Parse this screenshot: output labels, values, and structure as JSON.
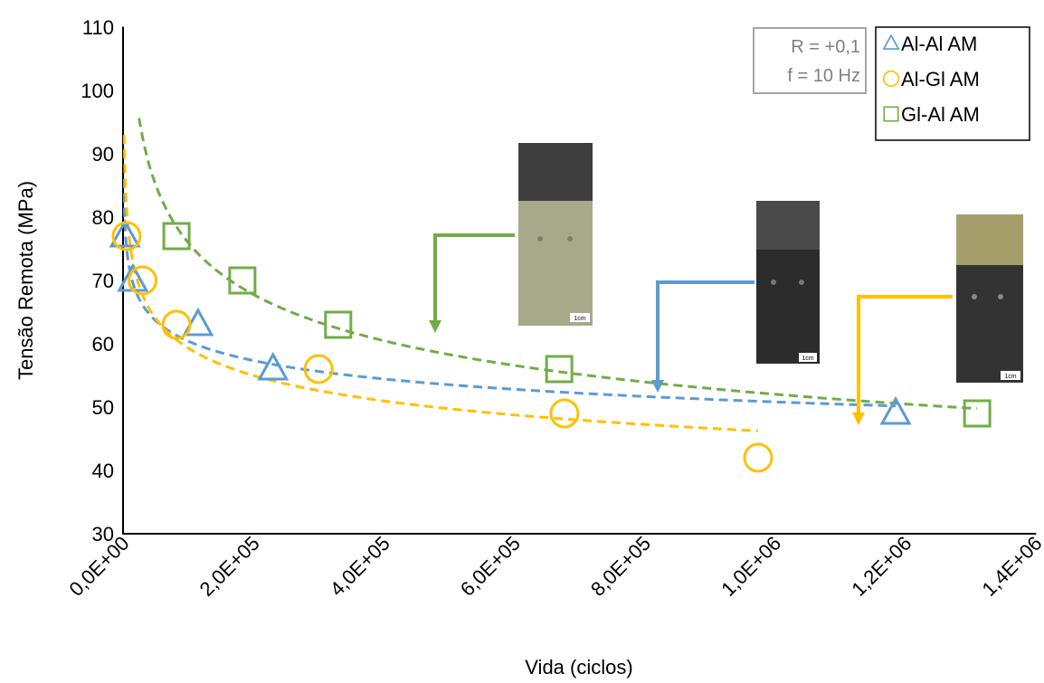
{
  "chart_data": {
    "type": "scatter",
    "x_label": "Vida (ciclos)",
    "y_label": "Tensão Remota (MPa)",
    "xlim": [
      0,
      1400000
    ],
    "ylim": [
      30,
      110
    ],
    "xticks": [
      {
        "value": 0,
        "label": "0,0E+00"
      },
      {
        "value": 200000,
        "label": "2,0E+05"
      },
      {
        "value": 400000,
        "label": "4,0E+05"
      },
      {
        "value": 600000,
        "label": "6,0E+05"
      },
      {
        "value": 800000,
        "label": "8,0E+05"
      },
      {
        "value": 1000000,
        "label": "1,0E+06"
      },
      {
        "value": 1200000,
        "label": "1,2E+06"
      },
      {
        "value": 1400000,
        "label": "1,4E+06"
      }
    ],
    "yticks": [
      30,
      40,
      50,
      60,
      70,
      80,
      90,
      100,
      110
    ],
    "trendline": "power",
    "series": [
      {
        "name": "Al-Al AM",
        "color": "#5b9bd5",
        "marker": "triangle",
        "x": [
          3000,
          15000,
          115000,
          230000,
          1185000
        ],
        "values": [
          77,
          70,
          63,
          56,
          49
        ]
      },
      {
        "name": "Al-Gl AM",
        "color": "#ffc000",
        "marker": "circle",
        "x": [
          5500,
          30000,
          82000,
          300000,
          677000,
          974000
        ],
        "values": [
          77,
          70,
          63,
          56,
          49,
          42
        ]
      },
      {
        "name": "Gl-Al AM",
        "color": "#70ad47",
        "marker": "square",
        "x": [
          82000,
          183000,
          330000,
          669000,
          1310000
        ],
        "values": [
          77,
          70,
          63,
          56,
          49
        ]
      }
    ],
    "annotation": [
      "R = +0,1",
      "f = 10 Hz"
    ],
    "photo_scale": "1cm"
  }
}
